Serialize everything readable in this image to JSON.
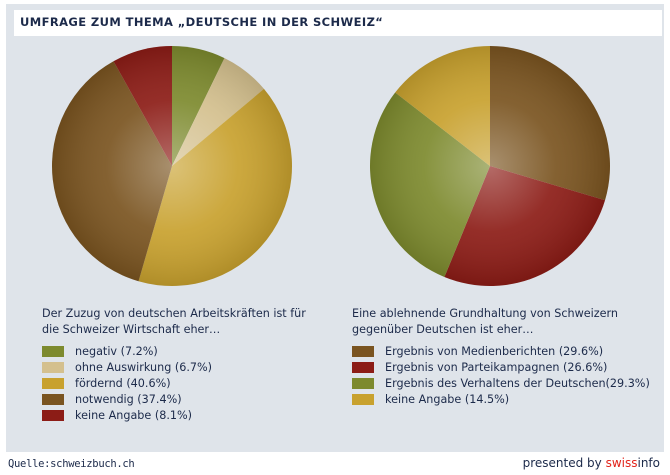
{
  "title": "UMFRAGE ZUM THEMA „DEUTSCHE IN DER SCHWEIZ“",
  "chart_data": [
    {
      "type": "pie",
      "title": "Der Zuzug von deutschen Arbeitskräften ist für\ndie Schweizer Wirtschaft eher…",
      "slices": [
        {
          "label": "negativ (7.2%)",
          "value": 7.2,
          "color": "#7d8a2e"
        },
        {
          "label": "ohne Auswirkung (6.7%)",
          "value": 6.7,
          "color": "#d4c08e"
        },
        {
          "label": "fördernd (40.6%)",
          "value": 40.6,
          "color": "#c8a12e"
        },
        {
          "label": "notwendig (37.4%)",
          "value": 37.4,
          "color": "#7a5420"
        },
        {
          "label": "keine Angabe (8.1%)",
          "value": 8.1,
          "color": "#8c1c16"
        }
      ]
    },
    {
      "type": "pie",
      "title": "Eine ablehnende Grundhaltung von Schweizern\ngegenüber Deutschen ist eher…",
      "slices": [
        {
          "label": "Ergebnis von Medienberichten (29.6%)",
          "value": 29.6,
          "color": "#7a5420"
        },
        {
          "label": "Ergebnis von Parteikampagnen (26.6%)",
          "value": 26.6,
          "color": "#8c1c16"
        },
        {
          "label": "Ergebnis des Verhaltens der Deutschen(29.3%)",
          "value": 29.3,
          "color": "#7d8a2e"
        },
        {
          "label": "keine Angabe (14.5%)",
          "value": 14.5,
          "color": "#c8a12e"
        }
      ]
    }
  ],
  "footer": {
    "source": "Quelle:schweizbuch.ch",
    "presented": "presented by ",
    "brand_a": "swiss",
    "brand_b": "info"
  }
}
